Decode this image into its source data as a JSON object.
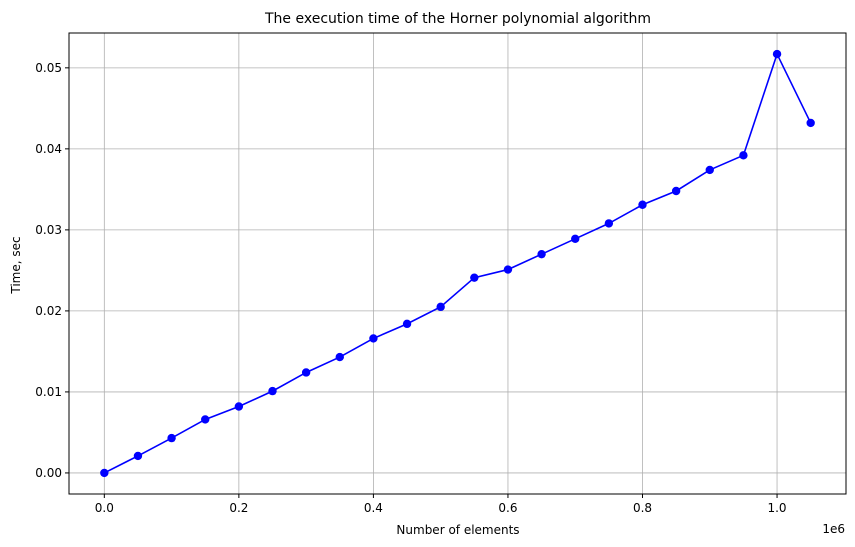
{
  "chart_data": {
    "type": "line",
    "title": "The execution time of the Horner polynomial algorithm",
    "xlabel": "Number of elements",
    "ylabel": "Time, sec",
    "x_offset_label": "1e6",
    "xlim": [
      -0.0525,
      1.1025
    ],
    "ylim": [
      -0.0026,
      0.0543
    ],
    "grid": true,
    "x_ticks": [
      0.0,
      0.2,
      0.4,
      0.6,
      0.8,
      1.0
    ],
    "x_tick_labels": [
      "0.0",
      "0.2",
      "0.4",
      "0.6",
      "0.8",
      "1.0"
    ],
    "y_ticks": [
      0.0,
      0.01,
      0.02,
      0.03,
      0.04,
      0.05
    ],
    "y_tick_labels": [
      "0.00",
      "0.01",
      "0.02",
      "0.03",
      "0.04",
      "0.05"
    ],
    "series": [
      {
        "color": "#0000ff",
        "marker": "circle",
        "x": [
          0.0,
          0.05,
          0.1,
          0.15,
          0.2,
          0.25,
          0.3,
          0.35,
          0.4,
          0.45,
          0.5,
          0.55,
          0.6,
          0.65,
          0.7,
          0.75,
          0.8,
          0.85,
          0.9,
          0.95,
          1.0,
          1.05
        ],
        "values": [
          0.0,
          0.0021,
          0.0043,
          0.0066,
          0.0082,
          0.0101,
          0.0124,
          0.0143,
          0.0166,
          0.0184,
          0.0205,
          0.0241,
          0.0251,
          0.027,
          0.0289,
          0.0308,
          0.0331,
          0.0348,
          0.0374,
          0.0392,
          0.0517,
          0.0432
        ]
      }
    ]
  }
}
